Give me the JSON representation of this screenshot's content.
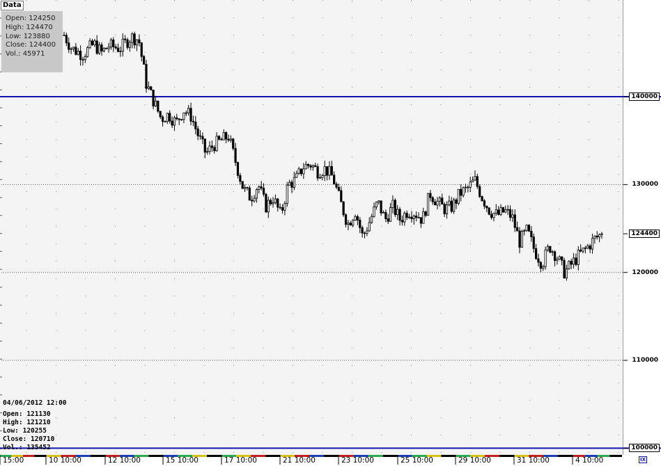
{
  "window": {
    "tab_label": "Data"
  },
  "hover_info": {
    "open": "Open: 124250",
    "high": "High: 124470",
    "low": "Low: 123880",
    "close": "Close: 124400",
    "vol": "Vol.: 45971"
  },
  "cursor_info": {
    "timestamp": "04/06/2012 12:00",
    "open": "Open: 121130",
    "high": "High: 121210",
    "low": "Low: 120255",
    "close": "Close: 120710",
    "vol": "Vol.: 135452"
  },
  "colors": {
    "candle": "#000000",
    "level_line": "#1212b0",
    "grid": "#555555",
    "background": "#f4f4f4"
  },
  "icons": {
    "corner": "chart-settings-icon"
  },
  "corner_label": "IX",
  "chart_data": {
    "type": "candlestick",
    "title": "",
    "ylim": [
      99400,
      151000
    ],
    "price_ticks": [
      {
        "value": 140000,
        "label": "140000",
        "style": "level"
      },
      {
        "value": 130000,
        "label": "130000",
        "style": "grid"
      },
      {
        "value": 124400,
        "label": "124400",
        "style": "current"
      },
      {
        "value": 120000,
        "label": "120000",
        "style": "grid"
      },
      {
        "value": 110000,
        "label": "110000",
        "style": "grid"
      },
      {
        "value": 100000,
        "label": "100000",
        "style": "level"
      }
    ],
    "horizontal_levels": [
      140000,
      100000
    ],
    "time_labels": [
      "15:00",
      "10 10:00",
      "12 10:00",
      "15 10:00",
      "17 10:00",
      "21 10:00",
      "23 10:00",
      "25 10:00",
      "29 10:00",
      "31 10:00",
      "4 10:00"
    ],
    "close_path": [
      [
        0,
        147000
      ],
      [
        2,
        145500
      ],
      [
        5,
        144800
      ],
      [
        8,
        146000
      ],
      [
        10,
        145000
      ],
      [
        12,
        145800
      ],
      [
        15,
        145500
      ],
      [
        18,
        146800
      ],
      [
        20,
        146500
      ],
      [
        22,
        141500
      ],
      [
        24,
        139500
      ],
      [
        26,
        137500
      ],
      [
        28,
        138000
      ],
      [
        30,
        137000
      ],
      [
        32,
        138500
      ],
      [
        34,
        137800
      ],
      [
        36,
        135500
      ],
      [
        38,
        133500
      ],
      [
        40,
        134500
      ],
      [
        42,
        135000
      ],
      [
        44,
        135500
      ],
      [
        46,
        132500
      ],
      [
        48,
        129500
      ],
      [
        50,
        128500
      ],
      [
        52,
        130000
      ],
      [
        54,
        127500
      ],
      [
        56,
        128500
      ],
      [
        58,
        126500
      ],
      [
        60,
        130000
      ],
      [
        62,
        130500
      ],
      [
        64,
        132000
      ],
      [
        66,
        132300
      ],
      [
        68,
        131500
      ],
      [
        70,
        131800
      ],
      [
        72,
        130800
      ],
      [
        74,
        128000
      ],
      [
        76,
        125500
      ],
      [
        78,
        127000
      ],
      [
        80,
        124000
      ],
      [
        82,
        126000
      ],
      [
        84,
        128000
      ],
      [
        86,
        126000
      ],
      [
        88,
        127500
      ],
      [
        90,
        126000
      ],
      [
        92,
        127000
      ],
      [
        94,
        126800
      ],
      [
        96,
        126000
      ],
      [
        98,
        129000
      ],
      [
        100,
        128000
      ],
      [
        102,
        127200
      ],
      [
        104,
        127500
      ],
      [
        106,
        129000
      ],
      [
        108,
        129500
      ],
      [
        110,
        130500
      ],
      [
        112,
        128500
      ],
      [
        114,
        127000
      ],
      [
        116,
        126500
      ],
      [
        118,
        127000
      ],
      [
        120,
        126300
      ],
      [
        122,
        123500
      ],
      [
        124,
        124800
      ],
      [
        126,
        122500
      ],
      [
        128,
        121000
      ],
      [
        130,
        123000
      ],
      [
        132,
        121800
      ],
      [
        134,
        120000
      ],
      [
        136,
        121000
      ],
      [
        138,
        122000
      ],
      [
        140,
        122800
      ],
      [
        142,
        123800
      ],
      [
        144,
        124400
      ]
    ]
  }
}
